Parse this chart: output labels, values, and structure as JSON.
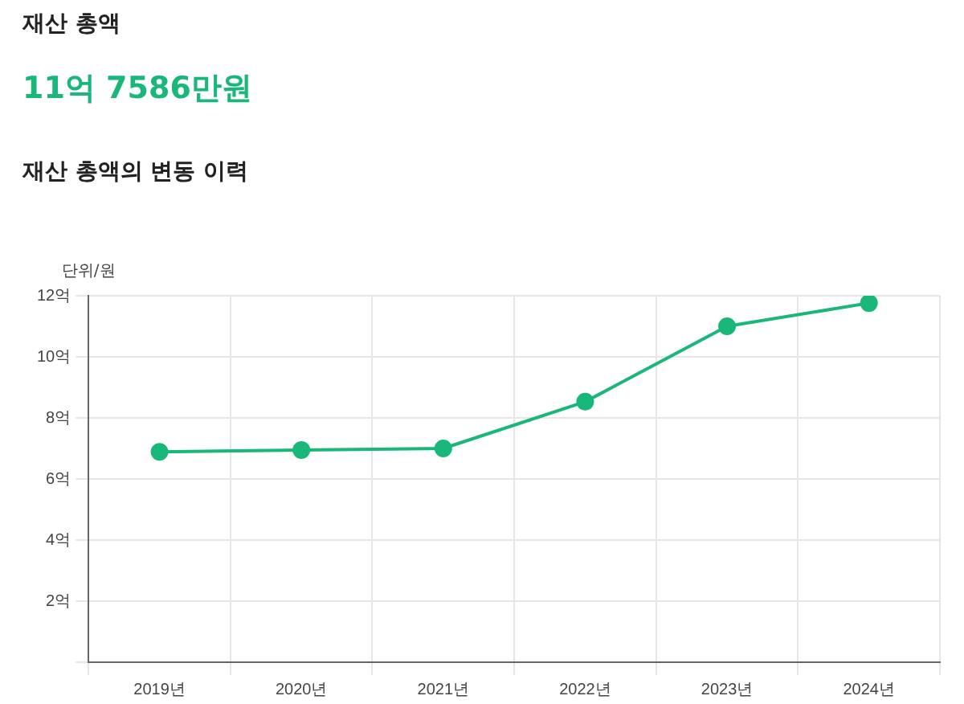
{
  "chart_data": {
    "type": "line",
    "title": "재산 총액의 변동 이력",
    "annotations": [
      "재산 총액",
      "11억 7586만원"
    ],
    "ylabel": "단위/원",
    "categories": [
      "2019년",
      "2020년",
      "2021년",
      "2022년",
      "2023년",
      "2024년"
    ],
    "series": [
      {
        "color": "#19b77a",
        "values": [
          6.89,
          6.95,
          7.0,
          8.53,
          11.0,
          11.76
        ]
      }
    ],
    "ylim": [
      0,
      12
    ],
    "yticks": [
      {
        "value": 0,
        "label": null
      },
      {
        "value": 2,
        "label": "2억"
      },
      {
        "value": 4,
        "label": "4억"
      },
      {
        "value": 6,
        "label": "6억"
      },
      {
        "value": 8,
        "label": "8억"
      },
      {
        "value": 10,
        "label": "10억"
      },
      {
        "value": 12,
        "label": "12억"
      }
    ],
    "grid": true,
    "marker": "circle",
    "line_style": "solid",
    "legend": false
  }
}
